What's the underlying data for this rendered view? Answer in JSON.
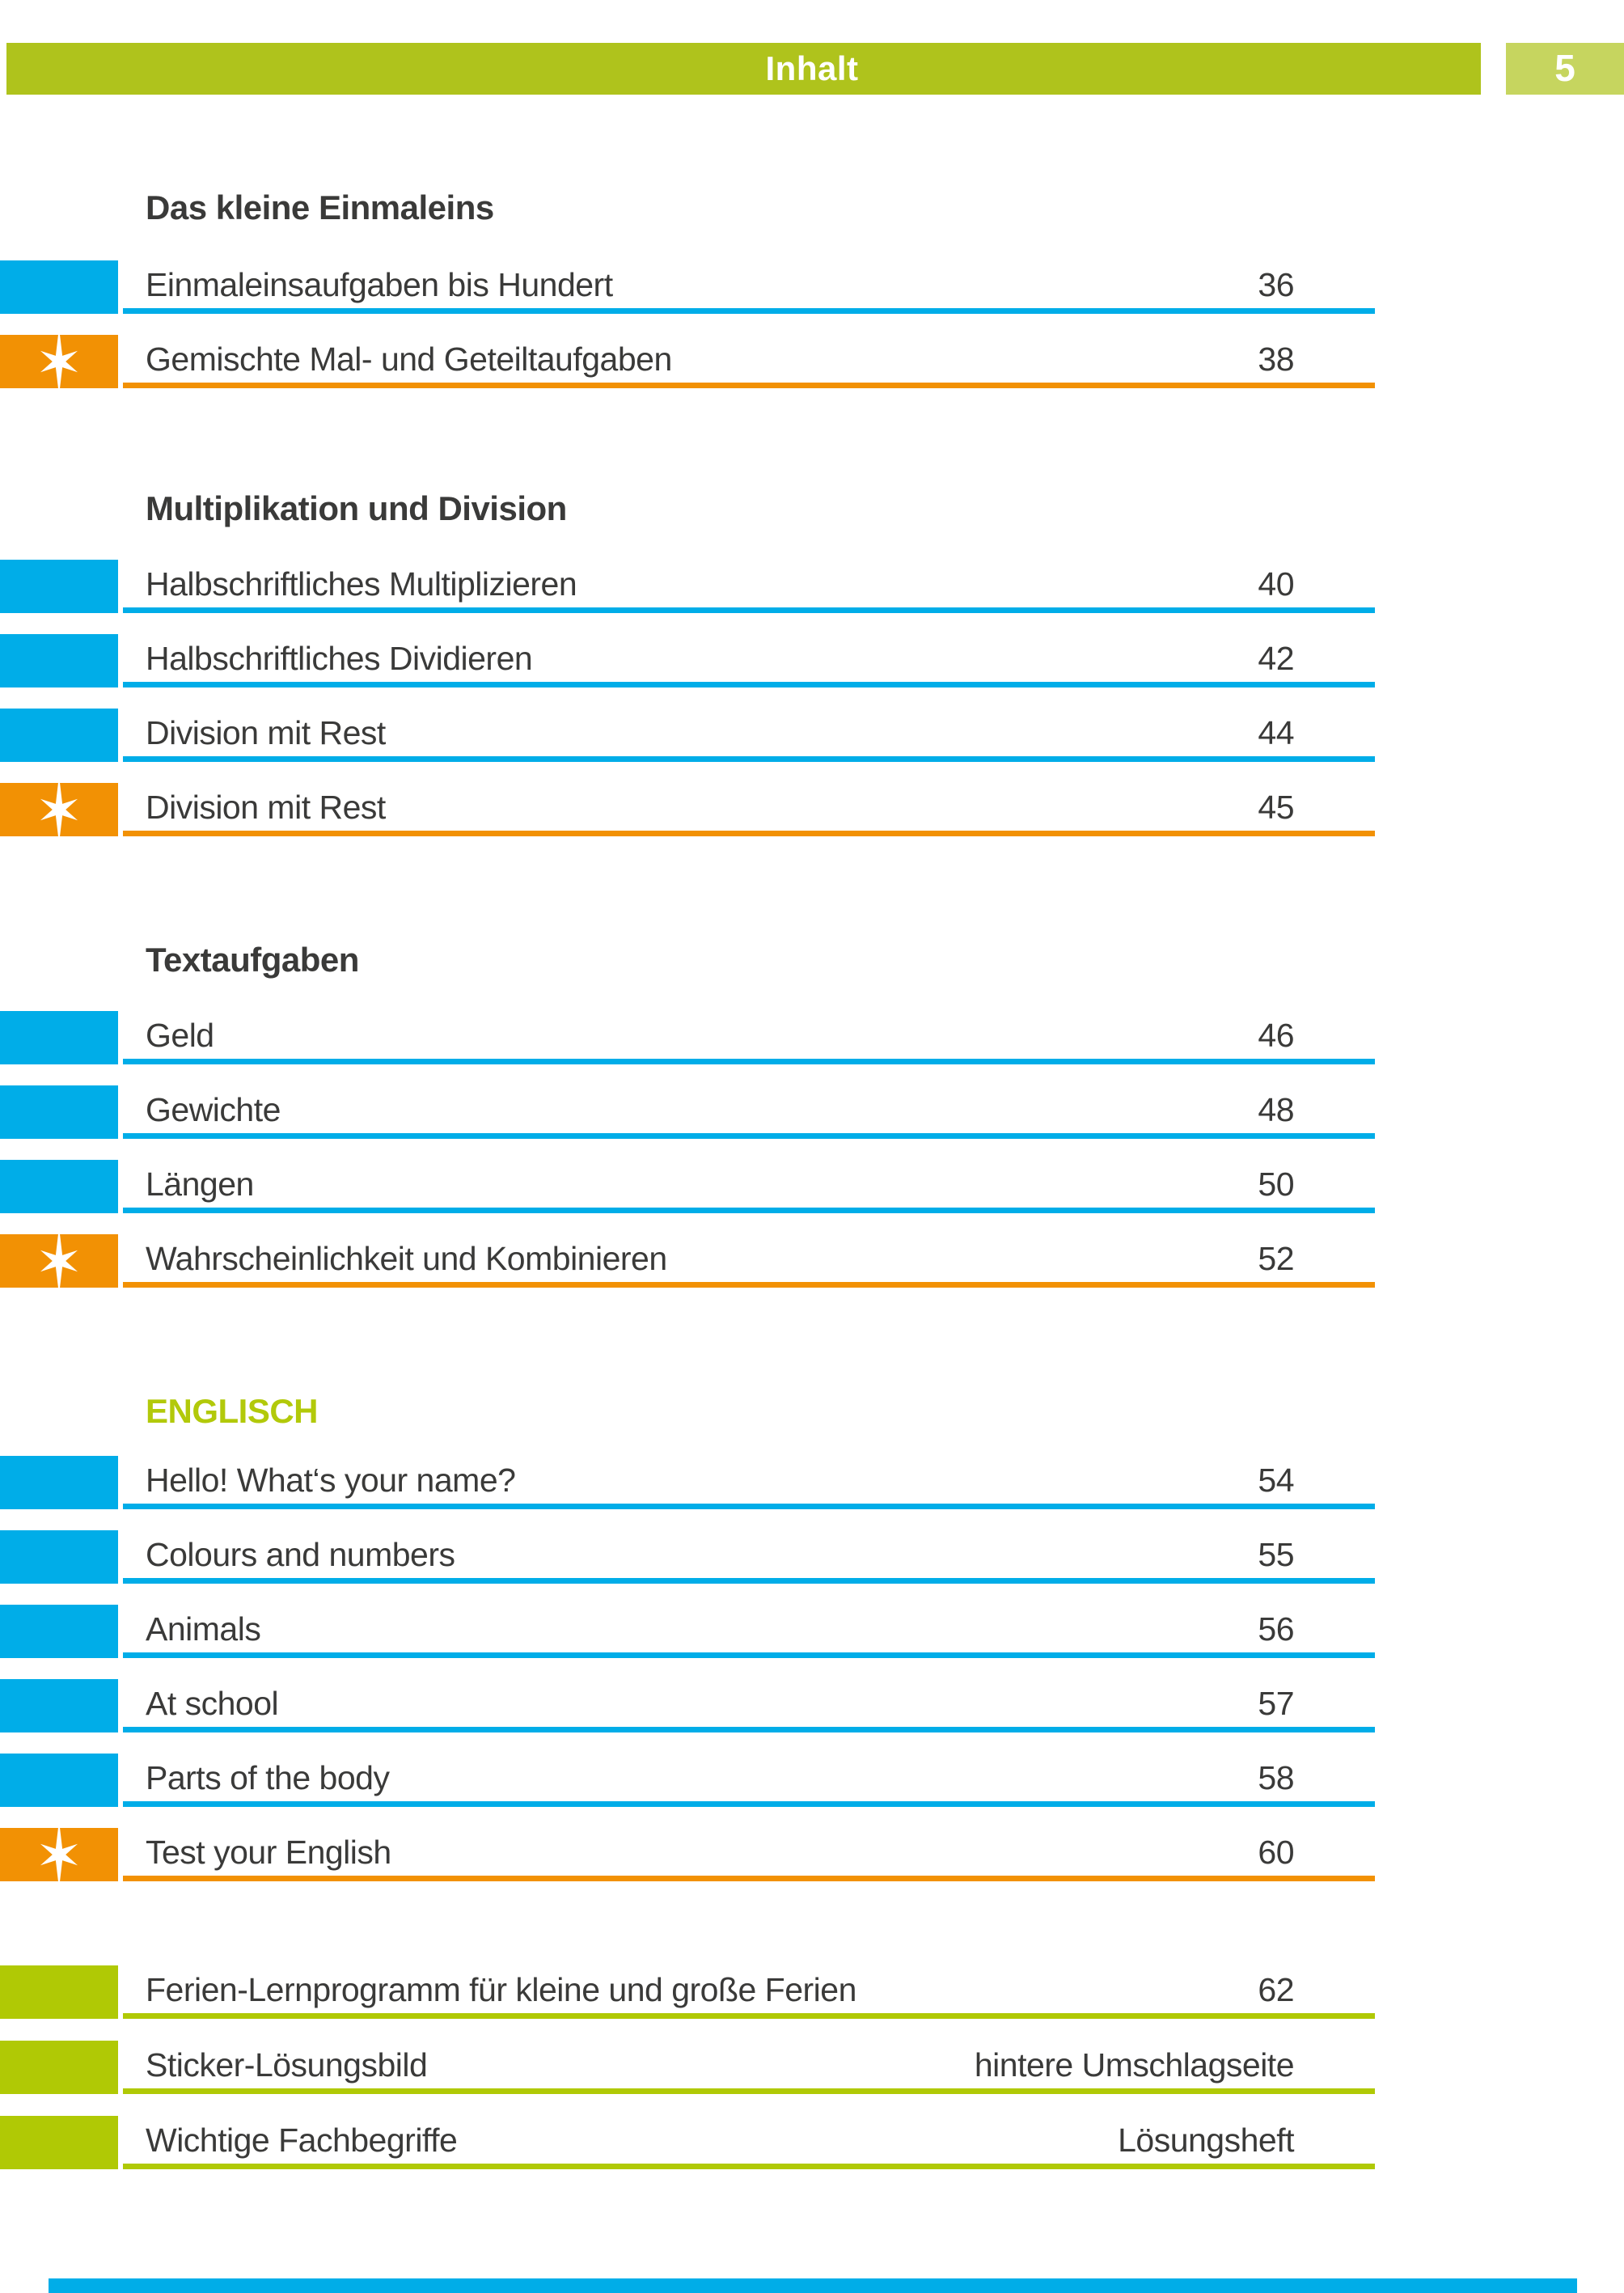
{
  "header": {
    "title": "Inhalt",
    "page_number": "5"
  },
  "colors": {
    "header_bar_green": "#afc31c",
    "page_box_green": "#c6d55f",
    "section_green": "#b2c90a",
    "row_blue": "#00ade8",
    "row_orange": "#f29104",
    "row_green": "#b0c905",
    "text_dark": "#3a3a39",
    "footer_blue": "#00ade8"
  },
  "icons": {
    "star": "six-point-sparkle-star"
  },
  "sections": [
    {
      "title": "Das kleine Einmaleins",
      "title_style": "dark",
      "items": [
        {
          "label": "Einmaleinsaufgaben bis Hundert",
          "page": "36",
          "type": "blue",
          "star": false
        },
        {
          "label": "Gemischte Mal- und Geteiltaufgaben",
          "page": "38",
          "type": "orange",
          "star": true
        }
      ]
    },
    {
      "title": "Multiplikation und Division",
      "title_style": "dark",
      "items": [
        {
          "label": "Halbschriftliches Multiplizieren",
          "page": "40",
          "type": "blue",
          "star": false
        },
        {
          "label": "Halbschriftliches Dividieren",
          "page": "42",
          "type": "blue",
          "star": false
        },
        {
          "label": "Division mit Rest",
          "page": "44",
          "type": "blue",
          "star": false
        },
        {
          "label": "Division mit Rest",
          "page": "45",
          "type": "orange",
          "star": true
        }
      ]
    },
    {
      "title": "Textaufgaben",
      "title_style": "dark",
      "items": [
        {
          "label": "Geld",
          "page": "46",
          "type": "blue",
          "star": false
        },
        {
          "label": "Gewichte",
          "page": "48",
          "type": "blue",
          "star": false
        },
        {
          "label": "Längen",
          "page": "50",
          "type": "blue",
          "star": false
        },
        {
          "label": "Wahrscheinlichkeit und Kombinieren",
          "page": "52",
          "type": "orange",
          "star": true
        }
      ]
    },
    {
      "title": "ENGLISCH",
      "title_style": "green",
      "items": [
        {
          "label": "Hello! What‘s your name?",
          "page": "54",
          "type": "blue",
          "star": false
        },
        {
          "label": "Colours and numbers",
          "page": "55",
          "type": "blue",
          "star": false
        },
        {
          "label": "Animals",
          "page": "56",
          "type": "blue",
          "star": false
        },
        {
          "label": "At school",
          "page": "57",
          "type": "blue",
          "star": false
        },
        {
          "label": "Parts of the body",
          "page": "58",
          "type": "blue",
          "star": false
        },
        {
          "label": "Test your English",
          "page": "60",
          "type": "orange",
          "star": true
        }
      ]
    },
    {
      "title": "",
      "title_style": "none",
      "items": [
        {
          "label": "Ferien-Lernprogramm für kleine und große Ferien",
          "page": "62",
          "type": "green",
          "star": false
        },
        {
          "label": "Sticker-Lösungsbild",
          "page": "hintere Umschlagseite",
          "type": "green",
          "star": false
        },
        {
          "label": "Wichtige Fachbegriffe",
          "page": "Lösungsheft",
          "type": "green",
          "star": false
        }
      ]
    }
  ]
}
